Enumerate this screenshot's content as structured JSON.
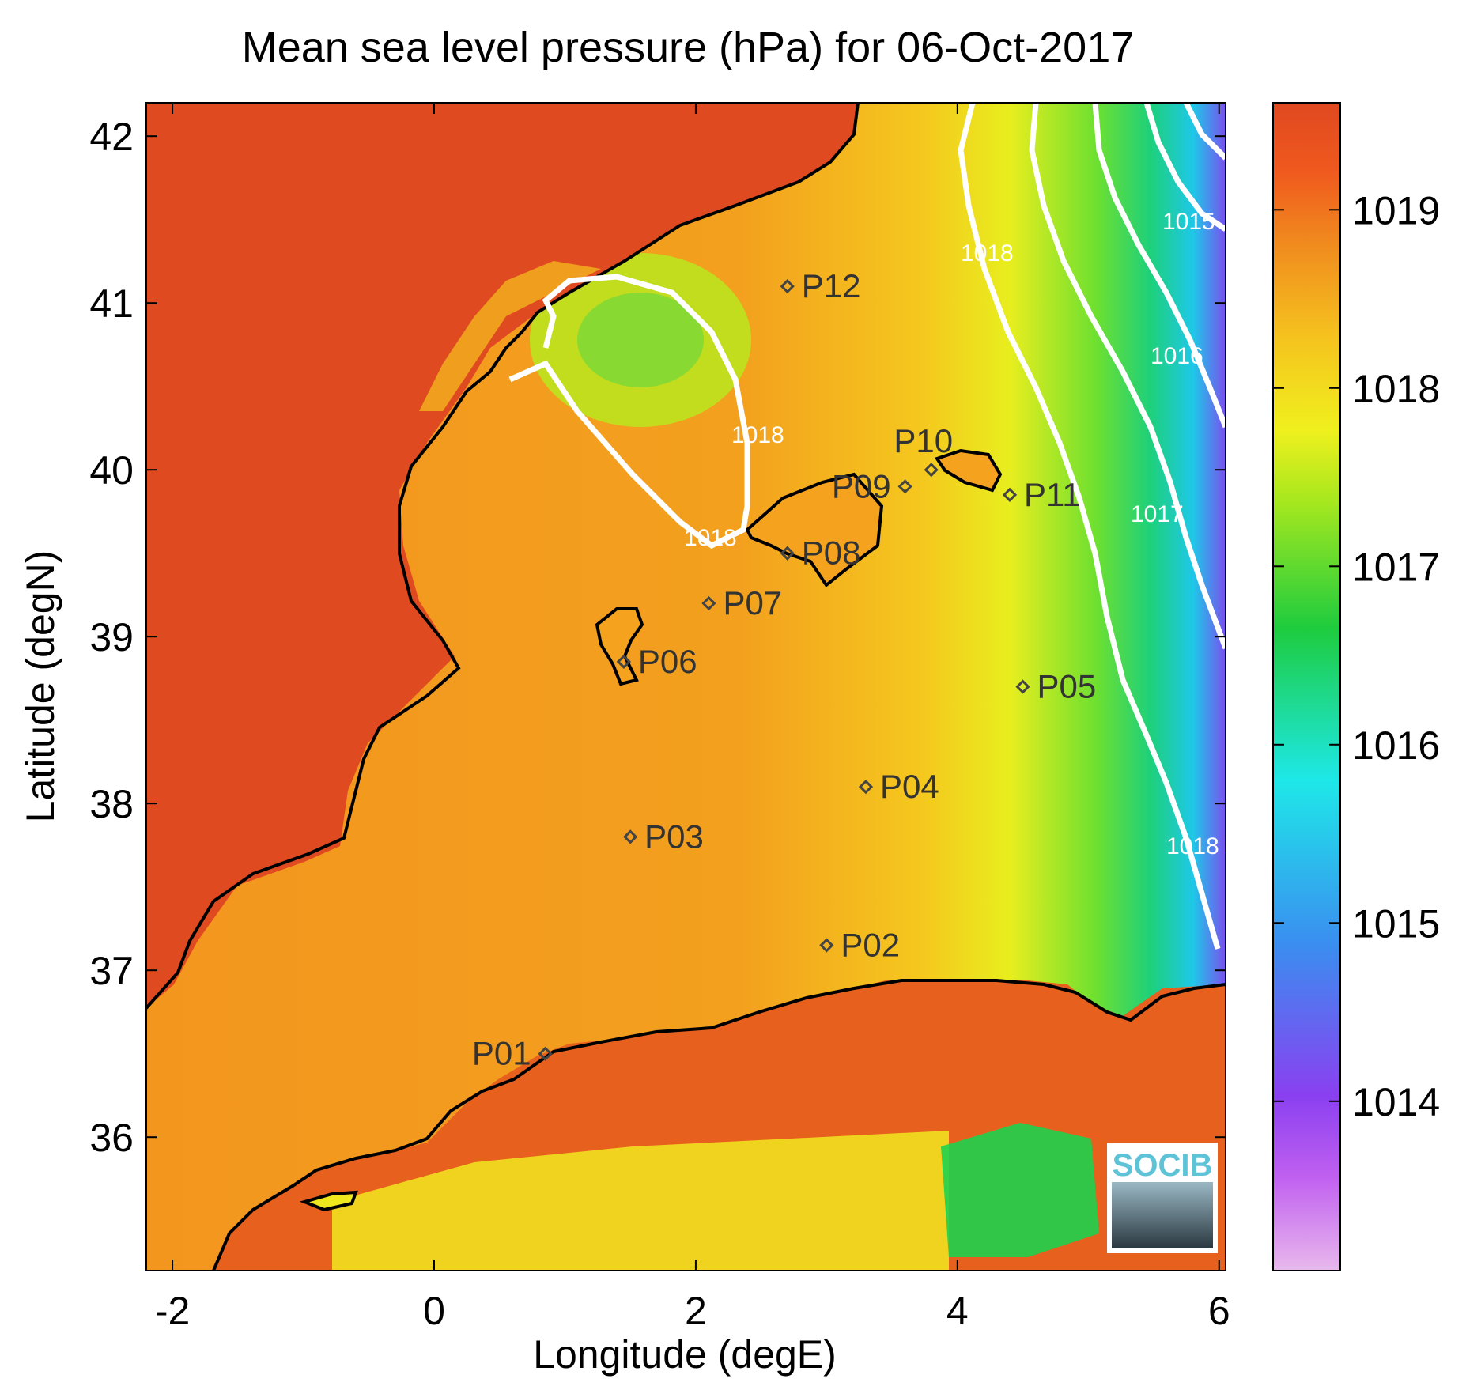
{
  "chart_data": {
    "type": "heatmap",
    "title": "Mean sea level pressure (hPa) for 06-Oct-2017",
    "xlabel": "Longitude (degE)",
    "ylabel": "Latitude (degN)",
    "xlim": [
      -2.2,
      6.05
    ],
    "ylim": [
      35.2,
      42.2
    ],
    "x_ticks": [
      -2,
      0,
      2,
      4,
      6
    ],
    "y_ticks": [
      36,
      37,
      38,
      39,
      40,
      41,
      42
    ],
    "colorbar": {
      "min": 1013.05,
      "max": 1019.6,
      "ticks": [
        1014,
        1015,
        1016,
        1017,
        1018,
        1019
      ],
      "colors": [
        "#e8b0e8",
        "#b040f0",
        "#6a3ef0",
        "#3a8ef0",
        "#1ee8e8",
        "#1ecc3e",
        "#a8e81e",
        "#f0f01e",
        "#f5c21e",
        "#f08a1e",
        "#f05a1e",
        "#e04820"
      ]
    },
    "contour_levels": [
      1015,
      1016,
      1017,
      1018
    ],
    "stations": [
      {
        "name": "P01",
        "lon": 0.85,
        "lat": 36.5
      },
      {
        "name": "P02",
        "lon": 3.0,
        "lat": 37.15
      },
      {
        "name": "P03",
        "lon": 1.5,
        "lat": 37.8
      },
      {
        "name": "P04",
        "lon": 3.3,
        "lat": 38.1
      },
      {
        "name": "P05",
        "lon": 4.5,
        "lat": 38.7
      },
      {
        "name": "P06",
        "lon": 1.45,
        "lat": 38.85
      },
      {
        "name": "P07",
        "lon": 2.1,
        "lat": 39.2
      },
      {
        "name": "P08",
        "lon": 2.7,
        "lat": 39.5
      },
      {
        "name": "P09",
        "lon": 3.6,
        "lat": 39.9
      },
      {
        "name": "P10",
        "lon": 3.8,
        "lat": 40.0
      },
      {
        "name": "P11",
        "lon": 4.4,
        "lat": 39.85
      },
      {
        "name": "P12",
        "lon": 2.7,
        "lat": 41.1
      }
    ]
  },
  "logo": {
    "text": "SOCIB"
  }
}
